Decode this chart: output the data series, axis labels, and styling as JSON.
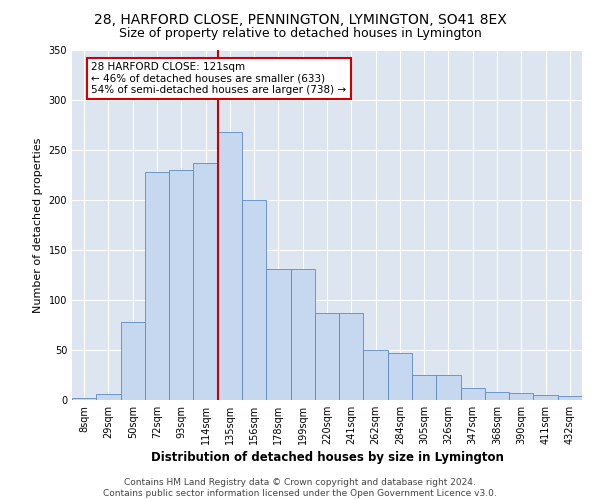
{
  "title1": "28, HARFORD CLOSE, PENNINGTON, LYMINGTON, SO41 8EX",
  "title2": "Size of property relative to detached houses in Lymington",
  "xlabel": "Distribution of detached houses by size in Lymington",
  "ylabel": "Number of detached properties",
  "categories": [
    "8sqm",
    "29sqm",
    "50sqm",
    "72sqm",
    "93sqm",
    "114sqm",
    "135sqm",
    "156sqm",
    "178sqm",
    "199sqm",
    "220sqm",
    "241sqm",
    "262sqm",
    "284sqm",
    "305sqm",
    "326sqm",
    "347sqm",
    "368sqm",
    "390sqm",
    "411sqm",
    "432sqm"
  ],
  "bar_heights": [
    2,
    6,
    78,
    228,
    230,
    237,
    268,
    200,
    131,
    131,
    87,
    87,
    50,
    47,
    25,
    25,
    12,
    8,
    7,
    5,
    4
  ],
  "bar_color": "#c5d8f0",
  "bar_edge_color": "#5b8ac4",
  "vline_color": "#cc0000",
  "annotation_line1": "28 HARFORD CLOSE: 121sqm",
  "annotation_line2": "← 46% of detached houses are smaller (633)",
  "annotation_line3": "54% of semi-detached houses are larger (738) →",
  "annotation_box_color": "#ffffff",
  "annotation_border_color": "#cc0000",
  "ylim": [
    0,
    350
  ],
  "yticks": [
    0,
    50,
    100,
    150,
    200,
    250,
    300,
    350
  ],
  "background_color": "#dde5f0",
  "footer1": "Contains HM Land Registry data © Crown copyright and database right 2024.",
  "footer2": "Contains public sector information licensed under the Open Government Licence v3.0.",
  "title1_fontsize": 10,
  "title2_fontsize": 9,
  "xlabel_fontsize": 8.5,
  "ylabel_fontsize": 8,
  "tick_fontsize": 7,
  "footer_fontsize": 6.5
}
